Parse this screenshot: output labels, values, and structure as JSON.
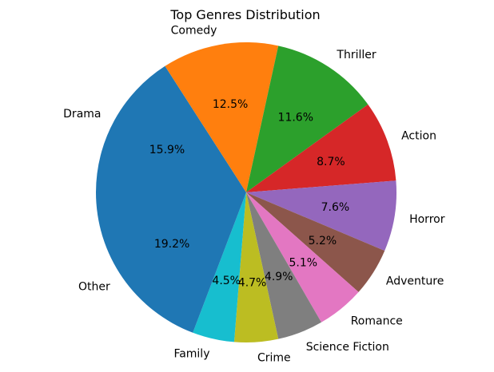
{
  "chart_data": {
    "type": "pie",
    "title": "Top Genres Distribution",
    "start_angle_deg": 180,
    "direction": "clockwise",
    "slices": [
      {
        "label": "Drama",
        "value": 15.9,
        "pct_label": "15.9%",
        "color": "#1f77b4"
      },
      {
        "label": "Comedy",
        "value": 12.5,
        "pct_label": "12.5%",
        "color": "#ff7f0e"
      },
      {
        "label": "Thriller",
        "value": 11.6,
        "pct_label": "11.6%",
        "color": "#2ca02c"
      },
      {
        "label": "Action",
        "value": 8.7,
        "pct_label": "8.7%",
        "color": "#d62728"
      },
      {
        "label": "Horror",
        "value": 7.6,
        "pct_label": "7.6%",
        "color": "#9467bd"
      },
      {
        "label": "Adventure",
        "value": 5.2,
        "pct_label": "5.2%",
        "color": "#8c564b"
      },
      {
        "label": "Romance",
        "value": 5.1,
        "pct_label": "5.1%",
        "color": "#e377c2"
      },
      {
        "label": "Science Fiction",
        "value": 4.9,
        "pct_label": "4.9%",
        "color": "#7f7f7f"
      },
      {
        "label": "Crime",
        "value": 4.7,
        "pct_label": "4.7%",
        "color": "#bcbd22"
      },
      {
        "label": "Family",
        "value": 4.5,
        "pct_label": "4.5%",
        "color": "#17becf"
      },
      {
        "label": "Other",
        "value": 19.2,
        "pct_label": "19.2%",
        "color": "#1f77b4"
      }
    ]
  }
}
